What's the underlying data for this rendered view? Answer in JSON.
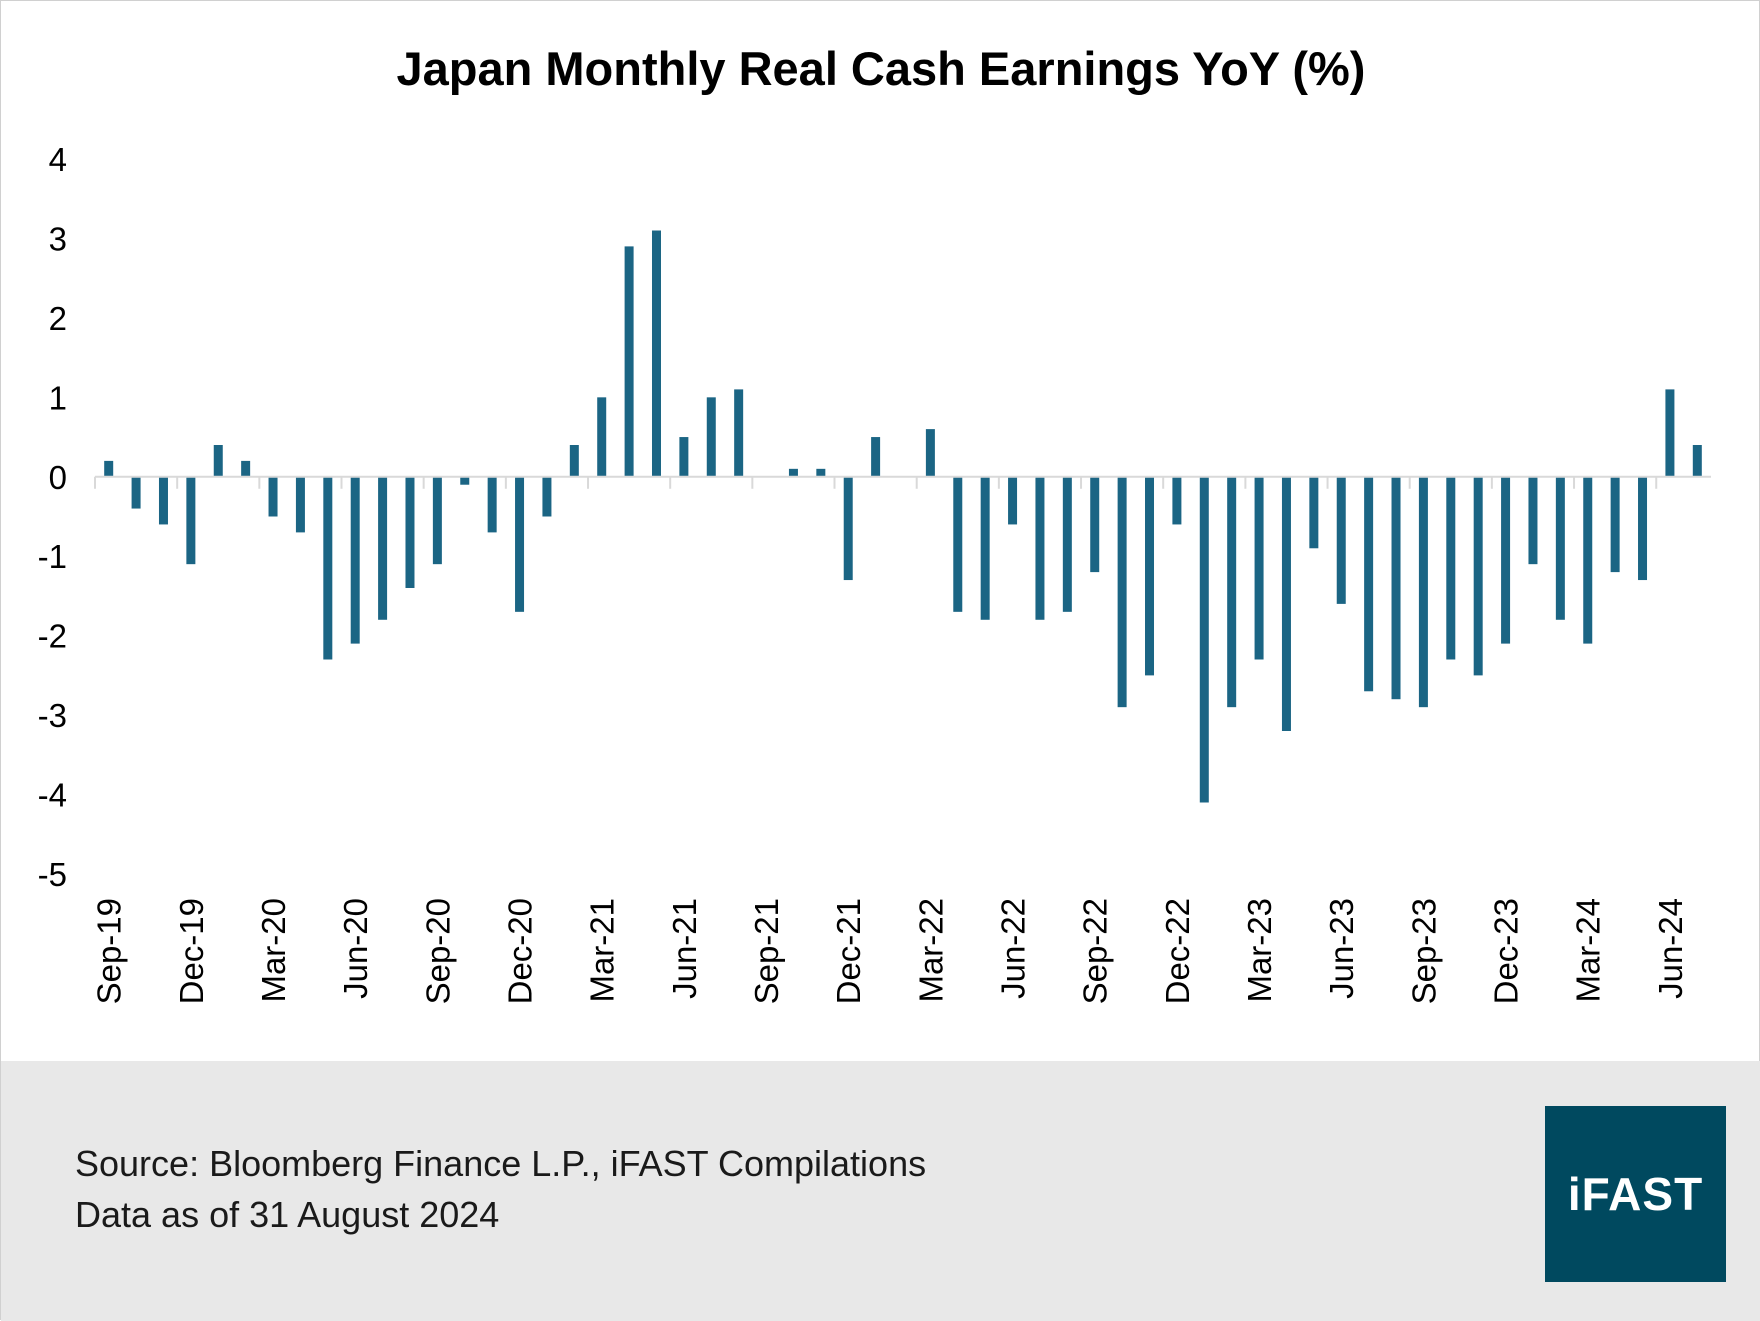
{
  "colors": {
    "bar": "#1b6584",
    "logo_bg": "#00495f",
    "footer_bg": "#e8e8e8",
    "axis": "#d9d9d9"
  },
  "chart_data": {
    "type": "bar",
    "title": "Japan Monthly Real Cash Earnings YoY (%)",
    "xlabel": "",
    "ylabel": "",
    "ylim": [
      -5,
      4
    ],
    "yticks": [
      "4",
      "3",
      "2",
      "1",
      "0",
      "-1",
      "-2",
      "-3",
      "-4",
      "-5"
    ],
    "grid": false,
    "tick_labels": [
      "Sep-19",
      "Dec-19",
      "Mar-20",
      "Jun-20",
      "Sep-20",
      "Dec-20",
      "Mar-21",
      "Jun-21",
      "Sep-21",
      "Dec-21",
      "Mar-22",
      "Jun-22",
      "Sep-22",
      "Dec-22",
      "Mar-23",
      "Jun-23",
      "Sep-23",
      "Dec-23",
      "Mar-24",
      "Jun-24"
    ],
    "categories": [
      "Sep-19",
      "Oct-19",
      "Nov-19",
      "Dec-19",
      "Jan-20",
      "Feb-20",
      "Mar-20",
      "Apr-20",
      "May-20",
      "Jun-20",
      "Jul-20",
      "Aug-20",
      "Sep-20",
      "Oct-20",
      "Nov-20",
      "Dec-20",
      "Jan-21",
      "Feb-21",
      "Mar-21",
      "Apr-21",
      "May-21",
      "Jun-21",
      "Jul-21",
      "Aug-21",
      "Sep-21",
      "Oct-21",
      "Nov-21",
      "Dec-21",
      "Jan-22",
      "Feb-22",
      "Mar-22",
      "Apr-22",
      "May-22",
      "Jun-22",
      "Jul-22",
      "Aug-22",
      "Sep-22",
      "Oct-22",
      "Nov-22",
      "Dec-22",
      "Jan-23",
      "Feb-23",
      "Mar-23",
      "Apr-23",
      "May-23",
      "Jun-23",
      "Jul-23",
      "Aug-23",
      "Sep-23",
      "Oct-23",
      "Nov-23",
      "Dec-23",
      "Jan-24",
      "Feb-24",
      "Mar-24",
      "Apr-24",
      "May-24",
      "Jun-24",
      "Jul-24"
    ],
    "series": [
      {
        "name": "Real Cash Earnings YoY (%)",
        "values": [
          0.2,
          -0.4,
          -0.6,
          -1.1,
          0.4,
          0.2,
          -0.5,
          -0.7,
          -2.3,
          -2.1,
          -1.8,
          -1.4,
          -1.1,
          -0.1,
          -0.7,
          -1.7,
          -0.5,
          0.4,
          1.0,
          2.9,
          3.1,
          0.5,
          1.0,
          1.1,
          0.0,
          0.1,
          0.1,
          -1.3,
          0.5,
          0.0,
          0.6,
          -1.7,
          -1.8,
          -0.6,
          -1.8,
          -1.7,
          -1.2,
          -2.9,
          -2.5,
          -0.6,
          -4.1,
          -2.9,
          -2.3,
          -3.2,
          -0.9,
          -1.6,
          -2.7,
          -2.8,
          -2.9,
          -2.3,
          -2.5,
          -2.1,
          -1.1,
          -1.8,
          -2.1,
          -1.2,
          -1.3,
          1.1,
          0.4
        ]
      }
    ]
  },
  "footer": {
    "source": "Source: Bloomberg Finance L.P., iFAST Compilations",
    "date": "Data as of 31 August 2024"
  },
  "logo": {
    "text": "iFAST"
  }
}
